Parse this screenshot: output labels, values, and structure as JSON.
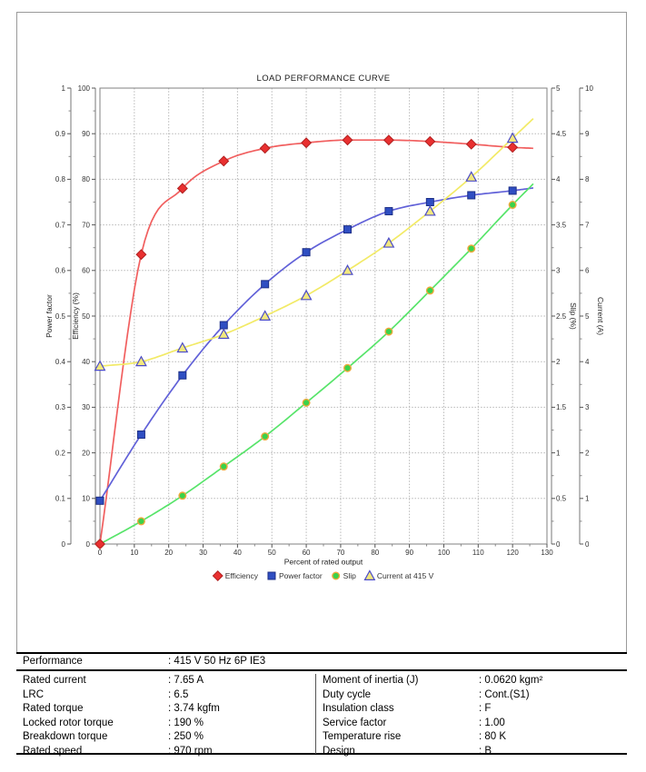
{
  "chart_data": {
    "type": "line",
    "title": "LOAD PERFORMANCE CURVE",
    "xlabel": "Percent of rated output",
    "grid": true,
    "legend_position": "bottom",
    "x_axis": {
      "min": 0,
      "max": 130,
      "step": 10,
      "ticks": [
        "0",
        "10",
        "20",
        "30",
        "40",
        "50",
        "60",
        "70",
        "80",
        "90",
        "100",
        "110",
        "120",
        "130"
      ]
    },
    "axes": {
      "power_factor": {
        "label": "Power factor",
        "min": 0,
        "max": 1,
        "step": 0.1,
        "ticks": [
          "0",
          "0.1",
          "0.2",
          "0.3",
          "0.4",
          "0.5",
          "0.6",
          "0.7",
          "0.8",
          "0.9",
          "1"
        ]
      },
      "efficiency": {
        "label": "Efficiency (%)",
        "min": 0,
        "max": 100,
        "step": 10,
        "ticks": [
          "0",
          "10",
          "20",
          "30",
          "40",
          "50",
          "60",
          "70",
          "80",
          "90",
          "100"
        ]
      },
      "slip": {
        "label": "Slip (%)",
        "min": 0,
        "max": 5,
        "step": 0.5,
        "ticks": [
          "0",
          "0.5",
          "1",
          "1.5",
          "2",
          "2.5",
          "3",
          "3.5",
          "4",
          "4.5",
          "5"
        ]
      },
      "current": {
        "label": "Current (A)",
        "min": 0,
        "max": 10,
        "step": 1,
        "ticks": [
          "0",
          "1",
          "2",
          "3",
          "4",
          "5",
          "6",
          "7",
          "8",
          "9",
          "10"
        ]
      }
    },
    "x": [
      0,
      12,
      24,
      36,
      48,
      60,
      72,
      84,
      96,
      108,
      120
    ],
    "series": [
      {
        "name": "Efficiency",
        "axis": "efficiency",
        "marker": "diamond",
        "line_color": "#f15f5f",
        "marker_fill": "#e93030",
        "marker_stroke": "#b02020",
        "values": [
          0,
          63.5,
          78,
          84,
          86.8,
          88,
          88.6,
          88.6,
          88.3,
          87.7,
          87
        ],
        "trail": {
          "x": 126,
          "value": 86.8
        }
      },
      {
        "name": "Power factor",
        "axis": "power_factor",
        "marker": "square",
        "line_color": "#6161d8",
        "marker_fill": "#2f4ec2",
        "marker_stroke": "#1d2f87",
        "values": [
          0.095,
          0.24,
          0.37,
          0.48,
          0.57,
          0.64,
          0.69,
          0.73,
          0.75,
          0.765,
          0.775
        ],
        "trail": {
          "x": 126,
          "value": 0.781
        }
      },
      {
        "name": "Slip",
        "axis": "slip",
        "marker": "circle",
        "line_color": "#57e46a",
        "marker_fill": "#3ad24a",
        "marker_stroke": "#efa93c",
        "values": [
          0,
          0.25,
          0.53,
          0.85,
          1.18,
          1.55,
          1.93,
          2.33,
          2.78,
          3.24,
          3.72
        ],
        "trail": {
          "x": 126,
          "value": 3.95
        }
      },
      {
        "name": "Current at 415 V",
        "axis": "current",
        "marker": "triangle",
        "line_color": "#f2ea66",
        "marker_fill": "#f2e87e",
        "marker_stroke": "#4b4bc8",
        "values": [
          3.9,
          4.0,
          4.3,
          4.6,
          5.0,
          5.45,
          6.0,
          6.6,
          7.3,
          8.05,
          8.9
        ],
        "trail": {
          "x": 126,
          "value": 9.33
        }
      }
    ]
  },
  "table": {
    "performance": {
      "label": "Performance",
      "value": ": 415 V 50 Hz 6P IE3"
    },
    "left": [
      {
        "label": "Rated current",
        "value": ": 7.65 A"
      },
      {
        "label": "LRC",
        "value": ": 6.5"
      },
      {
        "label": "Rated torque",
        "value": ": 3.74 kgfm"
      },
      {
        "label": "Locked rotor torque",
        "value": ": 190 %"
      },
      {
        "label": "Breakdown torque",
        "value": ": 250 %"
      },
      {
        "label": "Rated speed",
        "value": ": 970 rpm"
      }
    ],
    "right": [
      {
        "label": "Moment of inertia (J)",
        "value": ": 0.0620 kgm²"
      },
      {
        "label": "Duty cycle",
        "value": ": Cont.(S1)"
      },
      {
        "label": "Insulation class",
        "value": ": F"
      },
      {
        "label": "Service factor",
        "value": ": 1.00"
      },
      {
        "label": "Temperature rise",
        "value": ": 80 K"
      },
      {
        "label": "Design",
        "value": ": B"
      }
    ]
  }
}
